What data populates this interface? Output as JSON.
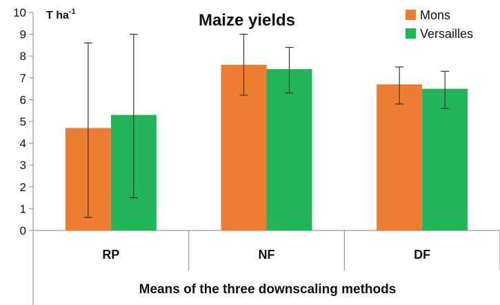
{
  "chart_data": {
    "type": "bar",
    "title": "Maize yields",
    "ylabel_unit": "T ha",
    "ylabel_unit_sup": "-1",
    "xlabel": "Means of the three downscaling methods",
    "categories": [
      "RP",
      "NF",
      "DF"
    ],
    "ylim": [
      0,
      10
    ],
    "yticks": [
      0,
      1,
      2,
      3,
      4,
      5,
      6,
      7,
      8,
      9,
      10
    ],
    "legend_position": "top-right",
    "series": [
      {
        "name": "Mons",
        "color": "#ED7D31",
        "values": [
          4.7,
          7.6,
          6.7
        ],
        "err_low": [
          0.6,
          6.2,
          5.8
        ],
        "err_high": [
          8.6,
          9.0,
          7.5
        ]
      },
      {
        "name": "Versailles",
        "color": "#21B45A",
        "values": [
          5.3,
          7.4,
          6.5
        ],
        "err_low": [
          1.5,
          6.3,
          5.6
        ],
        "err_high": [
          9.0,
          8.4,
          7.3
        ]
      }
    ]
  }
}
